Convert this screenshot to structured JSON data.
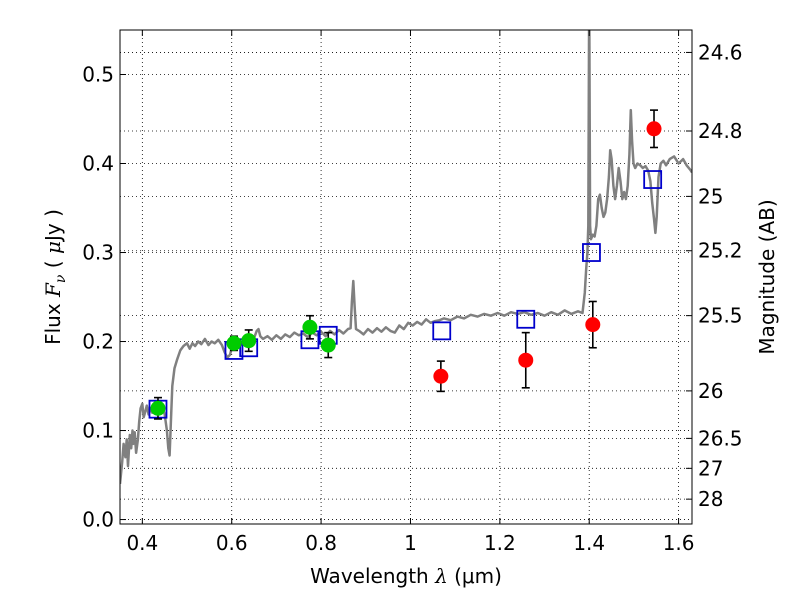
{
  "chart_data": {
    "type": "scatter",
    "xlabel": "Wavelength  λ (μm)",
    "ylabel": "Flux  F_ν  ( μJy )",
    "ylabel_parts": {
      "prefix": "Flux  ",
      "symbol": "F",
      "subscript": "ν",
      "unit_open": "  ( ",
      "unit_mu": "μ",
      "unit_rest": "Jy )"
    },
    "xlabel_parts": {
      "prefix": "Wavelength  ",
      "symbol": "λ",
      "unit": " (μm)"
    },
    "y2label": "Magnitude (AB)",
    "xlim": [
      0.35,
      1.63
    ],
    "ylim": [
      -0.005,
      0.55
    ],
    "grid": true,
    "x_ticks": [
      {
        "value": 0.4,
        "label": "0.4"
      },
      {
        "value": 0.6,
        "label": "0.6"
      },
      {
        "value": 0.8,
        "label": "0.8"
      },
      {
        "value": 1.0,
        "label": "1"
      },
      {
        "value": 1.2,
        "label": "1.2"
      },
      {
        "value": 1.4,
        "label": "1.4"
      },
      {
        "value": 1.6,
        "label": "1.6"
      }
    ],
    "y_ticks": [
      {
        "value": 0.0,
        "label": "0.0"
      },
      {
        "value": 0.1,
        "label": "0.1"
      },
      {
        "value": 0.2,
        "label": "0.2"
      },
      {
        "value": 0.3,
        "label": "0.3"
      },
      {
        "value": 0.4,
        "label": "0.4"
      },
      {
        "value": 0.5,
        "label": "0.5"
      }
    ],
    "y2_ticks": [
      {
        "value": 24.6,
        "label": "24.6"
      },
      {
        "value": 24.8,
        "label": "24.8"
      },
      {
        "value": 25.0,
        "label": "25"
      },
      {
        "value": 25.2,
        "label": "25.2"
      },
      {
        "value": 25.5,
        "label": "25.5"
      },
      {
        "value": 26.0,
        "label": "26"
      },
      {
        "value": 26.5,
        "label": "26.5"
      },
      {
        "value": 27.0,
        "label": "27"
      },
      {
        "value": 28.0,
        "label": "28"
      }
    ],
    "series": [
      {
        "kind": "spectrum",
        "color": "#808080",
        "points": [
          [
            0.35,
            0.04
          ],
          [
            0.355,
            0.065
          ],
          [
            0.358,
            0.085
          ],
          [
            0.362,
            0.07
          ],
          [
            0.365,
            0.09
          ],
          [
            0.368,
            0.06
          ],
          [
            0.372,
            0.095
          ],
          [
            0.375,
            0.08
          ],
          [
            0.378,
            0.1
          ],
          [
            0.38,
            0.085
          ],
          [
            0.383,
            0.098
          ],
          [
            0.386,
            0.075
          ],
          [
            0.39,
            0.09
          ],
          [
            0.393,
            0.11
          ],
          [
            0.396,
            0.125
          ],
          [
            0.4,
            0.13
          ],
          [
            0.403,
            0.115
          ],
          [
            0.406,
            0.12
          ],
          [
            0.41,
            0.128
          ],
          [
            0.414,
            0.118
          ],
          [
            0.418,
            0.125
          ],
          [
            0.422,
            0.12
          ],
          [
            0.428,
            0.127
          ],
          [
            0.433,
            0.124
          ],
          [
            0.437,
            0.126
          ],
          [
            0.442,
            0.123
          ],
          [
            0.446,
            0.125
          ],
          [
            0.45,
            0.118
          ],
          [
            0.455,
            0.1
          ],
          [
            0.458,
            0.08
          ],
          [
            0.461,
            0.072
          ],
          [
            0.464,
            0.11
          ],
          [
            0.467,
            0.15
          ],
          [
            0.472,
            0.17
          ],
          [
            0.478,
            0.18
          ],
          [
            0.485,
            0.19
          ],
          [
            0.492,
            0.195
          ],
          [
            0.5,
            0.198
          ],
          [
            0.506,
            0.192
          ],
          [
            0.512,
            0.198
          ],
          [
            0.518,
            0.195
          ],
          [
            0.525,
            0.2
          ],
          [
            0.532,
            0.197
          ],
          [
            0.54,
            0.203
          ],
          [
            0.548,
            0.196
          ],
          [
            0.555,
            0.2
          ],
          [
            0.562,
            0.198
          ],
          [
            0.57,
            0.202
          ],
          [
            0.578,
            0.196
          ],
          [
            0.584,
            0.188
          ],
          [
            0.59,
            0.182
          ],
          [
            0.596,
            0.185
          ],
          [
            0.602,
            0.196
          ],
          [
            0.61,
            0.198
          ],
          [
            0.618,
            0.195
          ],
          [
            0.626,
            0.2
          ],
          [
            0.634,
            0.197
          ],
          [
            0.642,
            0.203
          ],
          [
            0.65,
            0.204
          ],
          [
            0.656,
            0.212
          ],
          [
            0.66,
            0.214
          ],
          [
            0.664,
            0.206
          ],
          [
            0.67,
            0.203
          ],
          [
            0.68,
            0.206
          ],
          [
            0.69,
            0.202
          ],
          [
            0.7,
            0.207
          ],
          [
            0.71,
            0.203
          ],
          [
            0.72,
            0.208
          ],
          [
            0.73,
            0.205
          ],
          [
            0.74,
            0.21
          ],
          [
            0.75,
            0.207
          ],
          [
            0.76,
            0.209
          ],
          [
            0.77,
            0.205
          ],
          [
            0.78,
            0.21
          ],
          [
            0.79,
            0.207
          ],
          [
            0.8,
            0.211
          ],
          [
            0.81,
            0.206
          ],
          [
            0.82,
            0.212
          ],
          [
            0.83,
            0.208
          ],
          [
            0.84,
            0.213
          ],
          [
            0.85,
            0.209
          ],
          [
            0.86,
            0.214
          ],
          [
            0.866,
            0.215
          ],
          [
            0.869,
            0.245
          ],
          [
            0.872,
            0.268
          ],
          [
            0.875,
            0.24
          ],
          [
            0.878,
            0.214
          ],
          [
            0.885,
            0.212
          ],
          [
            0.895,
            0.208
          ],
          [
            0.905,
            0.214
          ],
          [
            0.915,
            0.21
          ],
          [
            0.925,
            0.215
          ],
          [
            0.935,
            0.211
          ],
          [
            0.945,
            0.216
          ],
          [
            0.955,
            0.212
          ],
          [
            0.965,
            0.21
          ],
          [
            0.975,
            0.218
          ],
          [
            0.985,
            0.214
          ],
          [
            0.995,
            0.221
          ],
          [
            1.005,
            0.218
          ],
          [
            1.015,
            0.222
          ],
          [
            1.025,
            0.219
          ],
          [
            1.035,
            0.225
          ],
          [
            1.045,
            0.221
          ],
          [
            1.055,
            0.223
          ],
          [
            1.065,
            0.224
          ],
          [
            1.075,
            0.226
          ],
          [
            1.09,
            0.224
          ],
          [
            1.105,
            0.228
          ],
          [
            1.12,
            0.226
          ],
          [
            1.135,
            0.23
          ],
          [
            1.15,
            0.228
          ],
          [
            1.165,
            0.231
          ],
          [
            1.18,
            0.229
          ],
          [
            1.195,
            0.232
          ],
          [
            1.21,
            0.229
          ],
          [
            1.225,
            0.233
          ],
          [
            1.24,
            0.231
          ],
          [
            1.255,
            0.233
          ],
          [
            1.27,
            0.23
          ],
          [
            1.285,
            0.232
          ],
          [
            1.3,
            0.229
          ],
          [
            1.315,
            0.233
          ],
          [
            1.33,
            0.23
          ],
          [
            1.345,
            0.235
          ],
          [
            1.36,
            0.231
          ],
          [
            1.375,
            0.234
          ],
          [
            1.385,
            0.232
          ],
          [
            1.39,
            0.255
          ],
          [
            1.393,
            0.28
          ],
          [
            1.396,
            0.3
          ],
          [
            1.398,
            0.33
          ],
          [
            1.4,
            0.6
          ],
          [
            1.402,
            0.33
          ],
          [
            1.404,
            0.315
          ],
          [
            1.408,
            0.32
          ],
          [
            1.412,
            0.318
          ],
          [
            1.416,
            0.33
          ],
          [
            1.42,
            0.36
          ],
          [
            1.424,
            0.365
          ],
          [
            1.428,
            0.35
          ],
          [
            1.432,
            0.34
          ],
          [
            1.436,
            0.345
          ],
          [
            1.44,
            0.36
          ],
          [
            1.444,
            0.385
          ],
          [
            1.447,
            0.415
          ],
          [
            1.45,
            0.405
          ],
          [
            1.454,
            0.375
          ],
          [
            1.458,
            0.36
          ],
          [
            1.462,
            0.375
          ],
          [
            1.466,
            0.395
          ],
          [
            1.47,
            0.38
          ],
          [
            1.474,
            0.36
          ],
          [
            1.478,
            0.368
          ],
          [
            1.482,
            0.36
          ],
          [
            1.486,
            0.375
          ],
          [
            1.49,
            0.41
          ],
          [
            1.493,
            0.46
          ],
          [
            1.496,
            0.425
          ],
          [
            1.499,
            0.4
          ],
          [
            1.503,
            0.395
          ],
          [
            1.508,
            0.4
          ],
          [
            1.514,
            0.398
          ],
          [
            1.52,
            0.395
          ],
          [
            1.526,
            0.397
          ],
          [
            1.532,
            0.392
          ],
          [
            1.537,
            0.38
          ],
          [
            1.541,
            0.356
          ],
          [
            1.545,
            0.338
          ],
          [
            1.548,
            0.322
          ],
          [
            1.551,
            0.34
          ],
          [
            1.555,
            0.385
          ],
          [
            1.56,
            0.4
          ],
          [
            1.566,
            0.403
          ],
          [
            1.572,
            0.398
          ],
          [
            1.58,
            0.405
          ],
          [
            1.59,
            0.408
          ],
          [
            1.6,
            0.4
          ],
          [
            1.61,
            0.405
          ],
          [
            1.618,
            0.398
          ],
          [
            1.626,
            0.393
          ],
          [
            1.63,
            0.39
          ]
        ]
      },
      {
        "kind": "open-square",
        "color": "#0000cc",
        "points": [
          [
            0.435,
            0.124
          ],
          [
            0.605,
            0.19
          ],
          [
            0.638,
            0.193
          ],
          [
            0.775,
            0.202
          ],
          [
            0.816,
            0.207
          ],
          [
            1.07,
            0.212
          ],
          [
            1.258,
            0.225
          ],
          [
            1.405,
            0.3
          ],
          [
            1.542,
            0.382
          ]
        ]
      },
      {
        "kind": "green-point",
        "color": "#00cc00",
        "points": [
          {
            "x": 0.435,
            "y": 0.125,
            "err": 0.012
          },
          {
            "x": 0.605,
            "y": 0.198,
            "err": 0.008
          },
          {
            "x": 0.638,
            "y": 0.201,
            "err": 0.012
          },
          {
            "x": 0.775,
            "y": 0.216,
            "err": 0.013
          },
          {
            "x": 0.816,
            "y": 0.196,
            "err": 0.014
          }
        ]
      },
      {
        "kind": "red-point",
        "color": "#ff0000",
        "points": [
          {
            "x": 1.068,
            "y": 0.161,
            "err": 0.017
          },
          {
            "x": 1.258,
            "y": 0.179,
            "err": 0.031
          },
          {
            "x": 1.408,
            "y": 0.219,
            "err": 0.026
          },
          {
            "x": 1.545,
            "y": 0.439,
            "err": 0.021
          }
        ]
      }
    ]
  }
}
